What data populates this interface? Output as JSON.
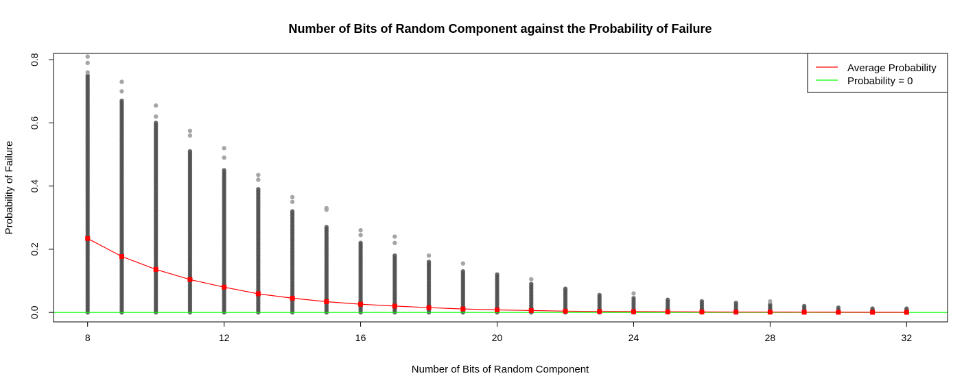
{
  "chart_data": {
    "type": "scatter",
    "title": "Number of Bits of Random Component against the Probability of Failure",
    "xlabel": "Number of Bits of Random Component",
    "ylabel": "Probability of Failure",
    "xlim": [
      7.0,
      33.2
    ],
    "ylim": [
      -0.03,
      0.82
    ],
    "xticks": [
      "8",
      "12",
      "16",
      "20",
      "24",
      "28",
      "32"
    ],
    "yticks": [
      "0.0",
      "0.2",
      "0.4",
      "0.6",
      "0.8"
    ],
    "grid": false,
    "legend_position": "top-right",
    "colors": {
      "points": "#4d4d4d",
      "outliers": "#a6a6a6",
      "average": "#ff0000",
      "zero_line": "#00ff00"
    },
    "scatter_ranges": [
      {
        "x": 8,
        "min": 0.0,
        "max": 0.75,
        "outliers": [
          0.76,
          0.79,
          0.81
        ]
      },
      {
        "x": 9,
        "min": 0.0,
        "max": 0.67,
        "outliers": [
          0.7,
          0.73
        ]
      },
      {
        "x": 10,
        "min": 0.0,
        "max": 0.6,
        "outliers": [
          0.62,
          0.655
        ]
      },
      {
        "x": 11,
        "min": 0.0,
        "max": 0.51,
        "outliers": [
          0.56,
          0.575
        ]
      },
      {
        "x": 12,
        "min": 0.0,
        "max": 0.45,
        "outliers": [
          0.49,
          0.52
        ]
      },
      {
        "x": 13,
        "min": 0.0,
        "max": 0.39,
        "outliers": [
          0.42,
          0.435
        ]
      },
      {
        "x": 14,
        "min": 0.0,
        "max": 0.32,
        "outliers": [
          0.35,
          0.365
        ]
      },
      {
        "x": 15,
        "min": 0.0,
        "max": 0.27,
        "outliers": [
          0.325,
          0.33
        ]
      },
      {
        "x": 16,
        "min": 0.0,
        "max": 0.22,
        "outliers": [
          0.245,
          0.26
        ]
      },
      {
        "x": 17,
        "min": 0.0,
        "max": 0.18,
        "outliers": [
          0.22,
          0.24
        ]
      },
      {
        "x": 18,
        "min": 0.0,
        "max": 0.16,
        "outliers": [
          0.18
        ]
      },
      {
        "x": 19,
        "min": 0.0,
        "max": 0.13,
        "outliers": [
          0.155
        ]
      },
      {
        "x": 20,
        "min": 0.0,
        "max": 0.12,
        "outliers": []
      },
      {
        "x": 21,
        "min": 0.0,
        "max": 0.09,
        "outliers": [
          0.105
        ]
      },
      {
        "x": 22,
        "min": 0.0,
        "max": 0.075,
        "outliers": []
      },
      {
        "x": 23,
        "min": 0.0,
        "max": 0.055,
        "outliers": []
      },
      {
        "x": 24,
        "min": 0.0,
        "max": 0.045,
        "outliers": [
          0.06
        ]
      },
      {
        "x": 25,
        "min": 0.0,
        "max": 0.04,
        "outliers": []
      },
      {
        "x": 26,
        "min": 0.0,
        "max": 0.035,
        "outliers": []
      },
      {
        "x": 27,
        "min": 0.0,
        "max": 0.03,
        "outliers": []
      },
      {
        "x": 28,
        "min": 0.0,
        "max": 0.025,
        "outliers": [
          0.035
        ]
      },
      {
        "x": 29,
        "min": 0.0,
        "max": 0.02,
        "outliers": []
      },
      {
        "x": 30,
        "min": 0.0,
        "max": 0.015,
        "outliers": []
      },
      {
        "x": 31,
        "min": 0.0,
        "max": 0.012,
        "outliers": []
      },
      {
        "x": 32,
        "min": 0.0,
        "max": 0.012,
        "outliers": []
      }
    ],
    "series": [
      {
        "name": "Average Probability",
        "x": [
          8,
          9,
          10,
          11,
          12,
          13,
          14,
          15,
          16,
          17,
          18,
          19,
          20,
          21,
          22,
          23,
          24,
          25,
          26,
          27,
          28,
          29,
          30,
          31,
          32
        ],
        "y": [
          0.234,
          0.177,
          0.136,
          0.104,
          0.08,
          0.059,
          0.045,
          0.034,
          0.026,
          0.02,
          0.015,
          0.011,
          0.008,
          0.006,
          0.004,
          0.003,
          0.0025,
          0.002,
          0.0015,
          0.001,
          0.001,
          0.0007,
          0.0005,
          0.0004,
          0.0003
        ]
      },
      {
        "name": "Probability = 0",
        "y": 0
      }
    ]
  }
}
